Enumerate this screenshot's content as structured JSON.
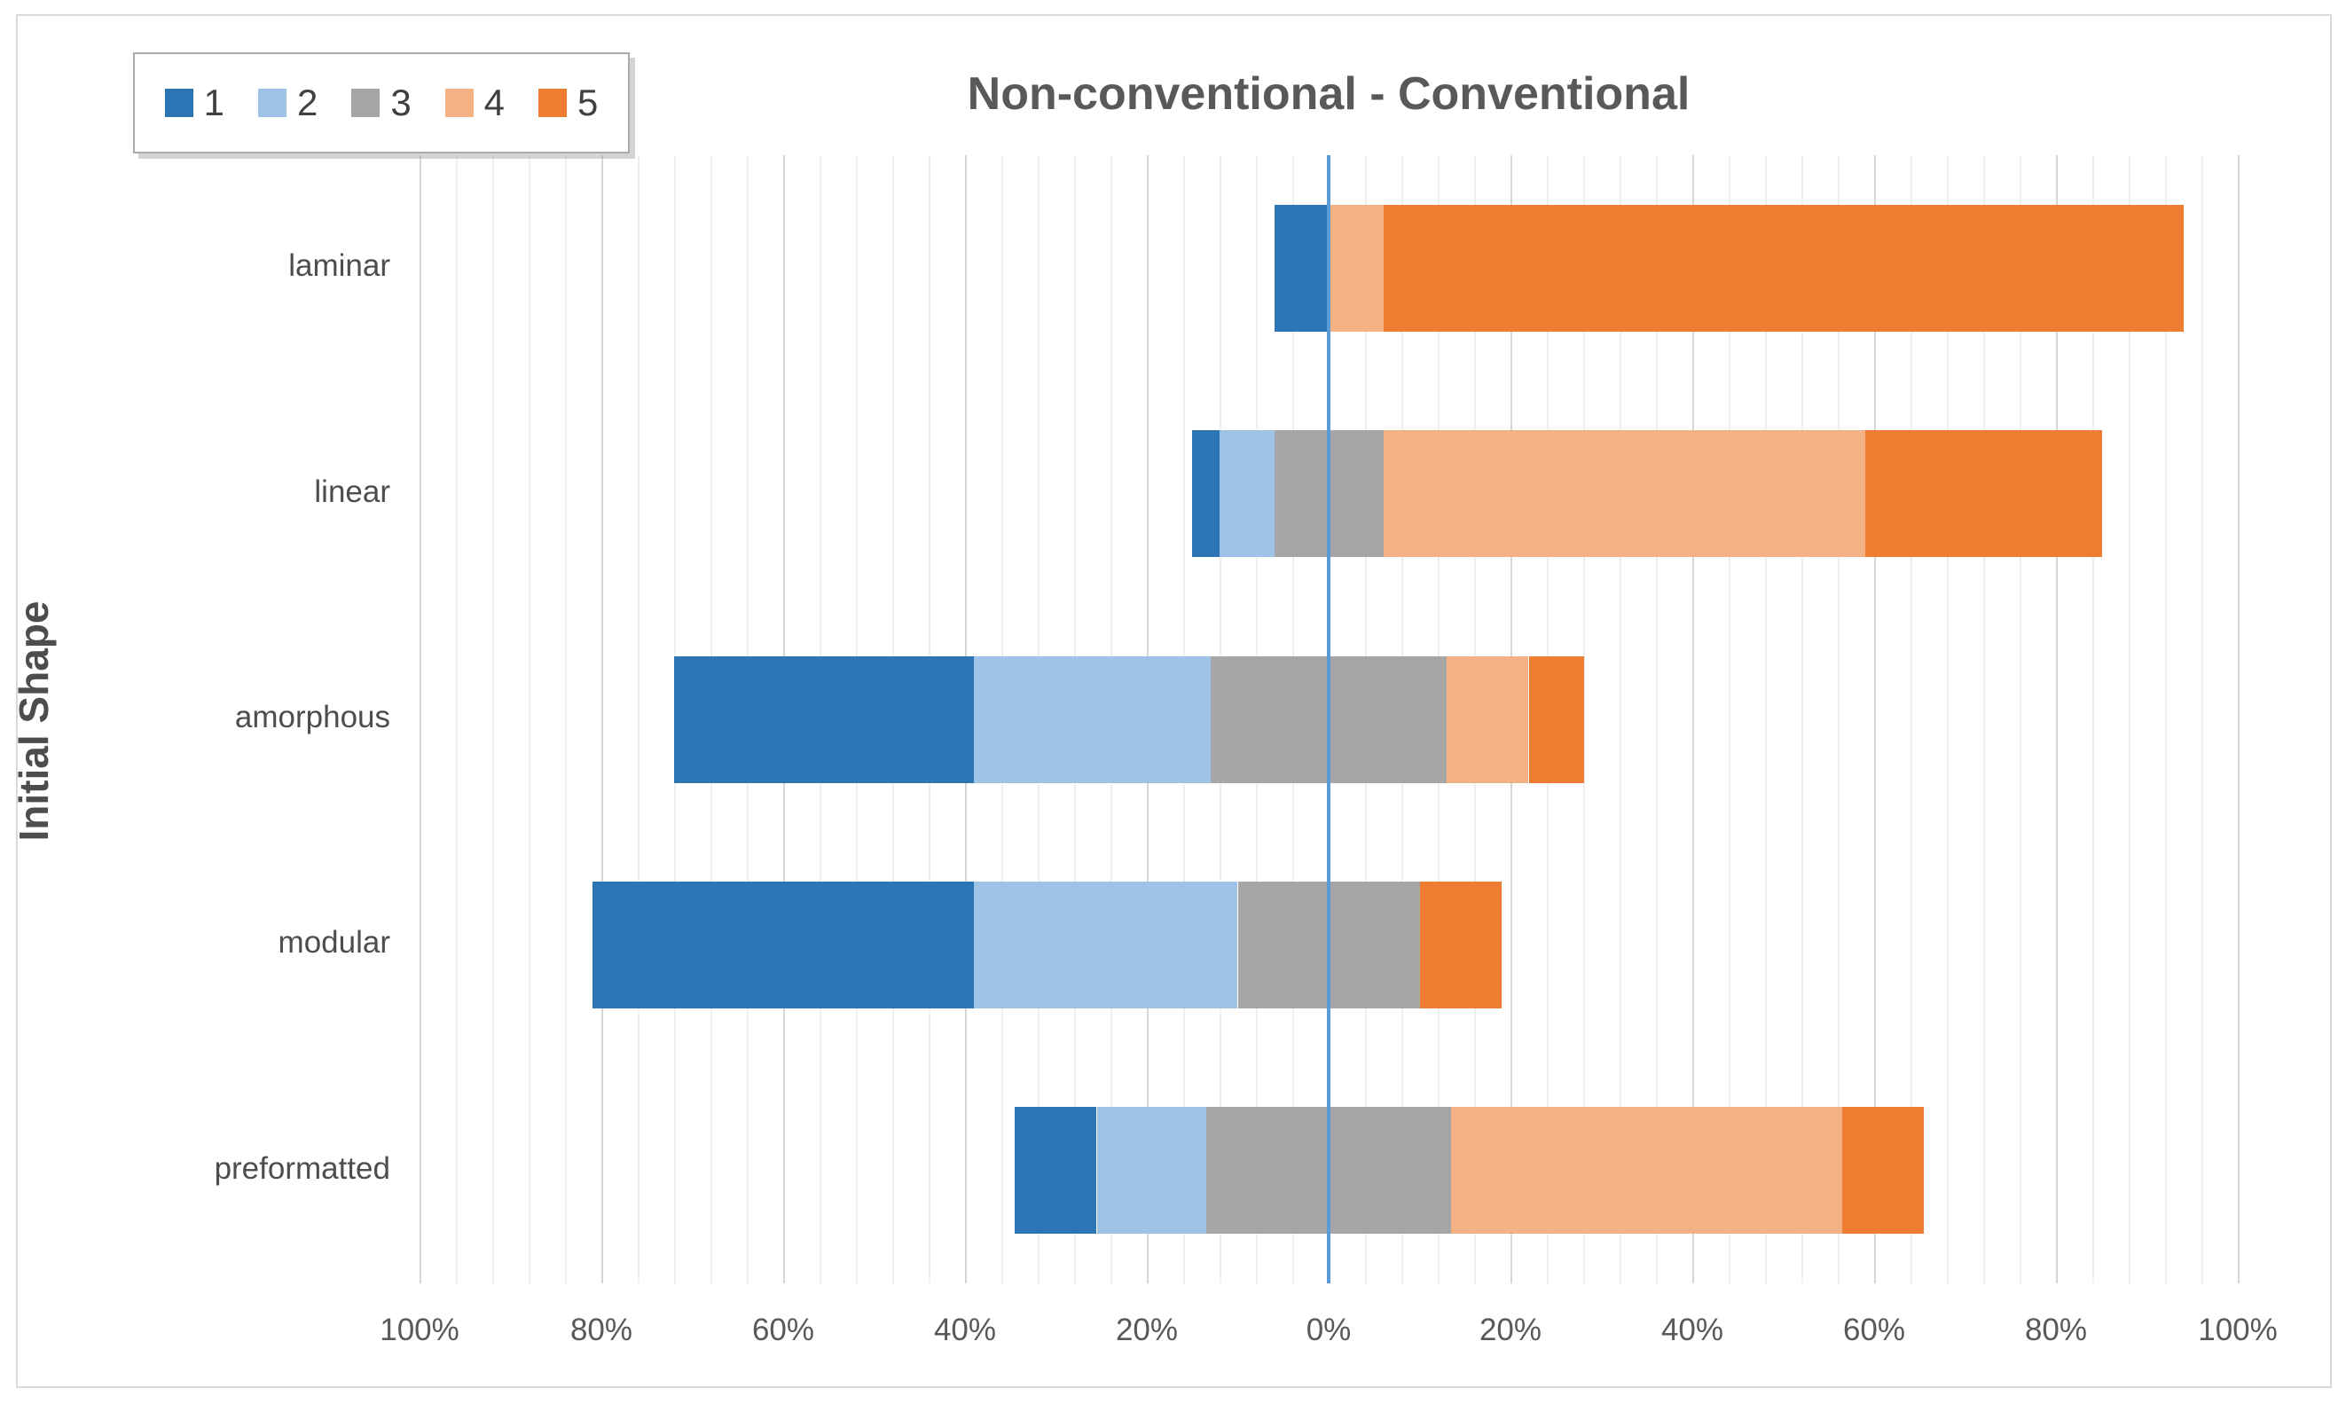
{
  "title": "Non-conventional - Conventional",
  "y_axis_title": "Initial Shape",
  "legend": {
    "items": [
      {
        "label": "1",
        "color": "#2E75B6"
      },
      {
        "label": "2",
        "color": "#9DC3E6"
      },
      {
        "label": "3",
        "color": "#A6A6A6"
      },
      {
        "label": "4",
        "color": "#F4B183"
      },
      {
        "label": "5",
        "color": "#ED7D31"
      }
    ]
  },
  "chart_data": {
    "type": "bar",
    "subtype": "diverging-stacked-likert",
    "title": "Non-conventional - Conventional",
    "ylabel": "Initial Shape",
    "categories": [
      "laminar",
      "linear",
      "amorphous",
      "modular",
      "preformatted"
    ],
    "series": [
      {
        "name": "1",
        "color": "#2E75B6",
        "values": [
          6,
          3,
          33,
          42,
          9
        ]
      },
      {
        "name": "2",
        "color": "#9DC3E6",
        "values": [
          0,
          6,
          26,
          29,
          12
        ]
      },
      {
        "name": "3",
        "color": "#A6A6A6",
        "values": [
          0,
          12,
          26,
          20,
          27
        ]
      },
      {
        "name": "4",
        "color": "#F4B183",
        "values": [
          6,
          53,
          9,
          0,
          43
        ]
      },
      {
        "name": "5",
        "color": "#ED7D31",
        "values": [
          88,
          26,
          6,
          9,
          9
        ]
      }
    ],
    "stacking_note": "series 1 and 2 plot left of zero, 4 and 5 right of zero, series 3 is centered on the zero line (half left, half right); values are percent of responses",
    "xlim": [
      -100,
      100
    ],
    "x_major_unit_pct": 20,
    "x_minor_unit_pct": 4,
    "x_tick_labels": [
      "100%",
      "80%",
      "60%",
      "40%",
      "20%",
      "0%",
      "20%",
      "40%",
      "60%",
      "80%",
      "100%"
    ],
    "grid": true,
    "legend_position": "top-left",
    "zero_line_color": "#5B9BD5",
    "axis_label_color": "#595959",
    "title_color": "#595959"
  }
}
